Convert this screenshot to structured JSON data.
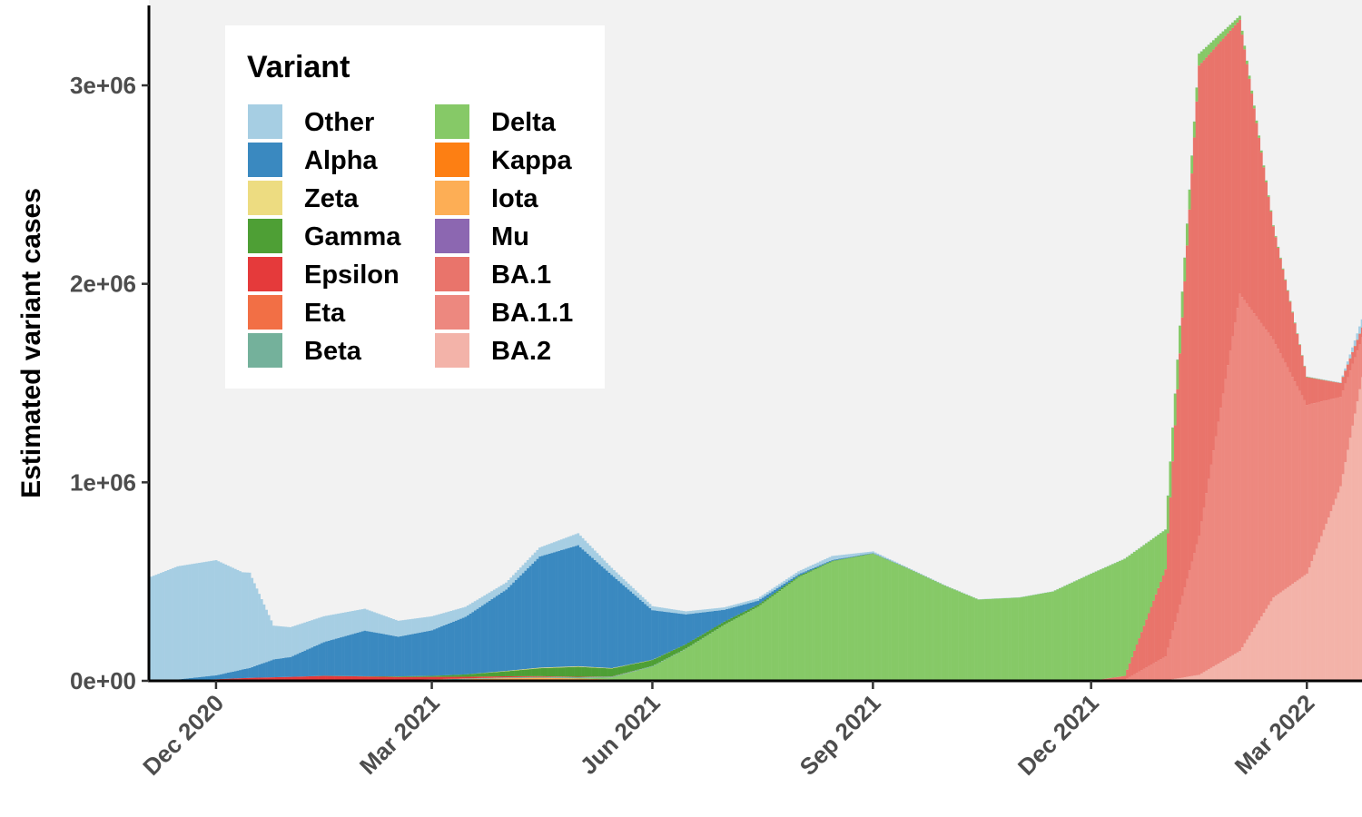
{
  "chart_data": {
    "type": "area",
    "stacked": true,
    "xlabel": "",
    "ylabel": "Estimated variant cases",
    "xlim": [
      "2020-11-03",
      "2022-03-24"
    ],
    "ylim": [
      0,
      3430000
    ],
    "x_ticks": [
      {
        "date": "2020-12-01",
        "label": "Dec 2020"
      },
      {
        "date": "2021-03-01",
        "label": "Mar 2021"
      },
      {
        "date": "2021-06-01",
        "label": "Jun 2021"
      },
      {
        "date": "2021-09-01",
        "label": "Sep 2021"
      },
      {
        "date": "2021-12-01",
        "label": "Dec 2021"
      },
      {
        "date": "2022-03-01",
        "label": "Mar 2022"
      }
    ],
    "y_ticks": [
      {
        "value": 0,
        "label": "0e+00"
      },
      {
        "value": 1000000,
        "label": "1e+06"
      },
      {
        "value": 2000000,
        "label": "2e+06"
      },
      {
        "value": 3000000,
        "label": "3e+06"
      }
    ],
    "grid": false,
    "panel_background": "#f2f2f2",
    "legend": {
      "title": "Variant",
      "placement": "top-left",
      "columns": 2
    },
    "series": [
      {
        "name": "Other",
        "color": "#a6cee3",
        "points": [
          [
            "2020-11-03",
            520000
          ],
          [
            "2020-11-15",
            570000
          ],
          [
            "2020-12-01",
            580000
          ],
          [
            "2020-12-12",
            490000
          ],
          [
            "2020-12-15",
            480000
          ],
          [
            "2020-12-25",
            170000
          ],
          [
            "2021-01-01",
            150000
          ],
          [
            "2021-01-15",
            130000
          ],
          [
            "2021-02-01",
            110000
          ],
          [
            "2021-02-15",
            80000
          ],
          [
            "2021-03-01",
            70000
          ],
          [
            "2021-03-15",
            50000
          ],
          [
            "2021-04-01",
            35000
          ],
          [
            "2021-04-15",
            45000
          ],
          [
            "2021-05-01",
            60000
          ],
          [
            "2021-05-15",
            35000
          ],
          [
            "2021-06-01",
            20000
          ],
          [
            "2021-06-15",
            15000
          ],
          [
            "2021-07-01",
            12000
          ],
          [
            "2021-07-15",
            12000
          ],
          [
            "2021-08-01",
            15000
          ],
          [
            "2021-08-15",
            20000
          ],
          [
            "2021-09-01",
            8000
          ],
          [
            "2021-09-15",
            2000
          ],
          [
            "2021-10-01",
            1000
          ],
          [
            "2021-10-15",
            1000
          ],
          [
            "2021-11-01",
            1000
          ],
          [
            "2021-11-15",
            1000
          ],
          [
            "2021-12-01",
            1000
          ],
          [
            "2021-12-15",
            1000
          ],
          [
            "2022-01-01",
            1000
          ],
          [
            "2022-01-15",
            1000
          ],
          [
            "2022-02-01",
            1000
          ],
          [
            "2022-02-15",
            1000
          ],
          [
            "2022-03-01",
            1000
          ],
          [
            "2022-03-15",
            2000
          ],
          [
            "2022-03-24",
            40000
          ]
        ]
      },
      {
        "name": "Alpha",
        "color": "#3a89c0",
        "points": [
          [
            "2020-11-03",
            0
          ],
          [
            "2020-11-15",
            5000
          ],
          [
            "2020-12-01",
            20000
          ],
          [
            "2020-12-15",
            50000
          ],
          [
            "2020-12-25",
            90000
          ],
          [
            "2021-01-01",
            100000
          ],
          [
            "2021-01-15",
            170000
          ],
          [
            "2021-02-01",
            230000
          ],
          [
            "2021-02-15",
            200000
          ],
          [
            "2021-03-01",
            230000
          ],
          [
            "2021-03-15",
            290000
          ],
          [
            "2021-04-01",
            410000
          ],
          [
            "2021-04-15",
            560000
          ],
          [
            "2021-05-01",
            610000
          ],
          [
            "2021-05-15",
            470000
          ],
          [
            "2021-06-01",
            250000
          ],
          [
            "2021-06-15",
            150000
          ],
          [
            "2021-07-01",
            60000
          ],
          [
            "2021-07-15",
            20000
          ],
          [
            "2021-08-01",
            8000
          ],
          [
            "2021-08-15",
            4000
          ],
          [
            "2021-09-01",
            2000
          ],
          [
            "2021-09-15",
            1000
          ],
          [
            "2021-10-01",
            500
          ],
          [
            "2021-10-15",
            0
          ],
          [
            "2021-11-01",
            0
          ],
          [
            "2021-11-15",
            0
          ],
          [
            "2021-12-01",
            0
          ],
          [
            "2021-12-15",
            0
          ],
          [
            "2022-01-01",
            0
          ],
          [
            "2022-01-15",
            0
          ],
          [
            "2022-02-01",
            0
          ],
          [
            "2022-02-15",
            0
          ],
          [
            "2022-03-01",
            0
          ],
          [
            "2022-03-15",
            0
          ],
          [
            "2022-03-24",
            0
          ]
        ]
      },
      {
        "name": "Zeta",
        "color": "#eddc81",
        "points": [
          [
            "2020-11-03",
            0
          ],
          [
            "2021-03-15",
            0
          ],
          [
            "2021-04-01",
            2000
          ],
          [
            "2021-04-15",
            3000
          ],
          [
            "2021-05-01",
            3000
          ],
          [
            "2021-05-15",
            2000
          ],
          [
            "2021-06-01",
            1000
          ],
          [
            "2021-06-15",
            0
          ],
          [
            "2022-03-24",
            0
          ]
        ]
      },
      {
        "name": "Gamma",
        "color": "#4e9f35",
        "points": [
          [
            "2020-11-03",
            0
          ],
          [
            "2021-01-01",
            0
          ],
          [
            "2021-02-01",
            1000
          ],
          [
            "2021-03-01",
            5000
          ],
          [
            "2021-03-15",
            12000
          ],
          [
            "2021-04-01",
            25000
          ],
          [
            "2021-04-15",
            40000
          ],
          [
            "2021-05-01",
            50000
          ],
          [
            "2021-05-15",
            40000
          ],
          [
            "2021-06-01",
            30000
          ],
          [
            "2021-06-15",
            22000
          ],
          [
            "2021-07-01",
            15000
          ],
          [
            "2021-07-15",
            10000
          ],
          [
            "2021-08-01",
            6000
          ],
          [
            "2021-08-15",
            3000
          ],
          [
            "2021-09-01",
            1000
          ],
          [
            "2021-09-15",
            0
          ],
          [
            "2022-03-24",
            0
          ]
        ]
      },
      {
        "name": "Epsilon",
        "color": "#e53a3b",
        "points": [
          [
            "2020-11-03",
            0
          ],
          [
            "2020-11-15",
            2000
          ],
          [
            "2020-12-01",
            8000
          ],
          [
            "2020-12-15",
            15000
          ],
          [
            "2021-01-01",
            20000
          ],
          [
            "2021-01-15",
            25000
          ],
          [
            "2021-02-01",
            20000
          ],
          [
            "2021-02-15",
            15000
          ],
          [
            "2021-03-01",
            12000
          ],
          [
            "2021-03-15",
            8000
          ],
          [
            "2021-04-01",
            5000
          ],
          [
            "2021-04-15",
            3000
          ],
          [
            "2021-05-01",
            2000
          ],
          [
            "2021-05-15",
            1000
          ],
          [
            "2021-06-01",
            0
          ],
          [
            "2022-03-24",
            0
          ]
        ]
      },
      {
        "name": "Eta",
        "color": "#f26f45",
        "points": [
          [
            "2020-11-03",
            0
          ],
          [
            "2021-01-15",
            0
          ],
          [
            "2021-02-01",
            1000
          ],
          [
            "2021-03-01",
            2000
          ],
          [
            "2021-04-01",
            1000
          ],
          [
            "2021-05-01",
            0
          ],
          [
            "2022-03-24",
            0
          ]
        ]
      },
      {
        "name": "Beta",
        "color": "#74b19b",
        "points": [
          [
            "2020-11-03",
            0
          ],
          [
            "2021-02-01",
            0
          ],
          [
            "2021-03-01",
            2000
          ],
          [
            "2021-04-01",
            4000
          ],
          [
            "2021-05-01",
            5000
          ],
          [
            "2021-06-01",
            3000
          ],
          [
            "2021-07-01",
            1000
          ],
          [
            "2021-08-01",
            0
          ],
          [
            "2022-03-24",
            0
          ]
        ]
      },
      {
        "name": "Delta",
        "color": "#86c967",
        "points": [
          [
            "2020-11-03",
            0
          ],
          [
            "2021-04-15",
            0
          ],
          [
            "2021-05-01",
            2000
          ],
          [
            "2021-05-15",
            10000
          ],
          [
            "2021-06-01",
            70000
          ],
          [
            "2021-06-15",
            160000
          ],
          [
            "2021-07-01",
            280000
          ],
          [
            "2021-07-15",
            370000
          ],
          [
            "2021-08-01",
            520000
          ],
          [
            "2021-08-15",
            600000
          ],
          [
            "2021-09-01",
            640000
          ],
          [
            "2021-09-15",
            570000
          ],
          [
            "2021-10-01",
            480000
          ],
          [
            "2021-10-15",
            410000
          ],
          [
            "2021-11-01",
            420000
          ],
          [
            "2021-11-15",
            450000
          ],
          [
            "2021-12-01",
            540000
          ],
          [
            "2021-12-15",
            590000
          ],
          [
            "2022-01-01",
            200000
          ],
          [
            "2022-01-15",
            60000
          ],
          [
            "2022-02-01",
            20000
          ],
          [
            "2022-02-15",
            5000
          ],
          [
            "2022-03-01",
            2000
          ],
          [
            "2022-03-15",
            1000
          ],
          [
            "2022-03-24",
            1000
          ]
        ]
      },
      {
        "name": "Kappa",
        "color": "#fd7f13",
        "points": [
          [
            "2020-11-03",
            0
          ],
          [
            "2021-03-15",
            0
          ],
          [
            "2021-04-01",
            1000
          ],
          [
            "2021-04-15",
            1500
          ],
          [
            "2021-05-01",
            1500
          ],
          [
            "2021-05-15",
            1000
          ],
          [
            "2021-06-01",
            0
          ],
          [
            "2022-03-24",
            0
          ]
        ]
      },
      {
        "name": "Iota",
        "color": "#fdae55",
        "points": [
          [
            "2020-11-03",
            0
          ],
          [
            "2021-01-15",
            0
          ],
          [
            "2021-02-15",
            2000
          ],
          [
            "2021-03-01",
            4000
          ],
          [
            "2021-03-15",
            8000
          ],
          [
            "2021-04-01",
            12000
          ],
          [
            "2021-04-15",
            14000
          ],
          [
            "2021-05-01",
            10000
          ],
          [
            "2021-05-15",
            6000
          ],
          [
            "2021-06-01",
            2000
          ],
          [
            "2021-06-15",
            0
          ],
          [
            "2022-03-24",
            0
          ]
        ]
      },
      {
        "name": "Mu",
        "color": "#8c67b1",
        "points": [
          [
            "2020-11-03",
            0
          ],
          [
            "2021-06-01",
            0
          ],
          [
            "2021-07-01",
            2000
          ],
          [
            "2021-07-15",
            3000
          ],
          [
            "2021-08-01",
            3000
          ],
          [
            "2021-08-15",
            2000
          ],
          [
            "2021-09-01",
            1000
          ],
          [
            "2021-09-15",
            0
          ],
          [
            "2022-03-24",
            0
          ]
        ]
      },
      {
        "name": "BA.1",
        "color": "#e9746b",
        "points": [
          [
            "2020-11-03",
            0
          ],
          [
            "2021-12-01",
            0
          ],
          [
            "2021-12-15",
            20000
          ],
          [
            "2022-01-01",
            440000
          ],
          [
            "2022-01-15",
            2370000
          ],
          [
            "2022-02-01",
            1380000
          ],
          [
            "2022-02-15",
            570000
          ],
          [
            "2022-03-01",
            140000
          ],
          [
            "2022-03-15",
            70000
          ],
          [
            "2022-03-24",
            50000
          ]
        ]
      },
      {
        "name": "BA.1.1",
        "color": "#ed887f",
        "points": [
          [
            "2020-11-03",
            0
          ],
          [
            "2021-12-01",
            0
          ],
          [
            "2021-12-15",
            5000
          ],
          [
            "2022-01-01",
            120000
          ],
          [
            "2022-01-15",
            700000
          ],
          [
            "2022-02-01",
            1800000
          ],
          [
            "2022-02-15",
            1300000
          ],
          [
            "2022-03-01",
            850000
          ],
          [
            "2022-03-15",
            450000
          ],
          [
            "2022-03-24",
            200000
          ]
        ]
      },
      {
        "name": "BA.2",
        "color": "#f3b3a9",
        "points": [
          [
            "2020-11-03",
            0
          ],
          [
            "2021-12-15",
            0
          ],
          [
            "2022-01-01",
            2000
          ],
          [
            "2022-01-15",
            30000
          ],
          [
            "2022-02-01",
            150000
          ],
          [
            "2022-02-15",
            420000
          ],
          [
            "2022-03-01",
            540000
          ],
          [
            "2022-03-15",
            980000
          ],
          [
            "2022-03-24",
            1530000
          ]
        ]
      }
    ]
  }
}
